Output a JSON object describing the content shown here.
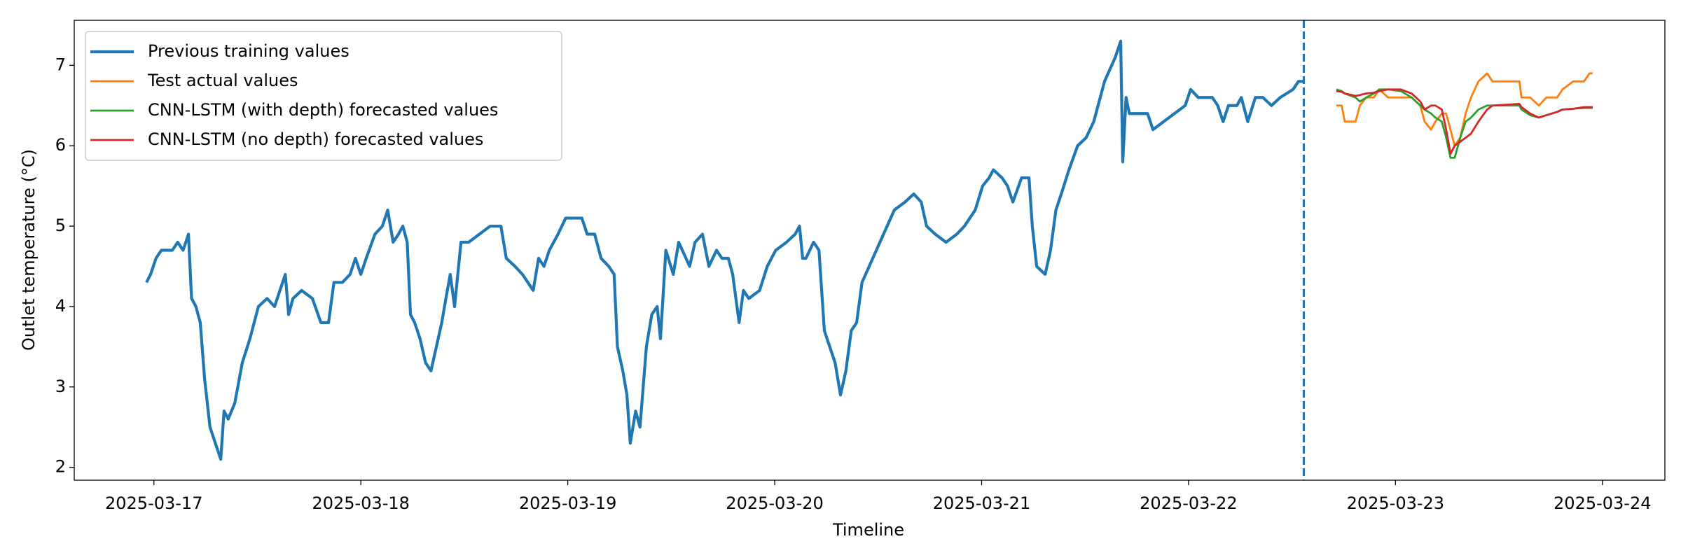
{
  "chart_data": {
    "type": "line",
    "xlabel": "Timeline",
    "ylabel": "Outlet temperature (°C)",
    "xlim": [
      20163.615,
      20171.302
    ],
    "ylim": [
      1.84,
      7.56
    ],
    "xticks": [
      {
        "value": 20164,
        "label": "2025-03-17"
      },
      {
        "value": 20165,
        "label": "2025-03-18"
      },
      {
        "value": 20166,
        "label": "2025-03-19"
      },
      {
        "value": 20167,
        "label": "2025-03-20"
      },
      {
        "value": 20168,
        "label": "2025-03-21"
      },
      {
        "value": 20169,
        "label": "2025-03-22"
      },
      {
        "value": 20170,
        "label": "2025-03-23"
      },
      {
        "value": 20171,
        "label": "2025-03-24"
      }
    ],
    "yticks": [
      2,
      3,
      4,
      5,
      6,
      7
    ],
    "grid": false,
    "legend": "upper left",
    "vline": {
      "x": 20169.557,
      "color": "#1f77b4",
      "style": "dashed"
    },
    "series": [
      {
        "name": "Previous training values",
        "color": "#1f77b4",
        "x": [
          20163.964,
          20163.984,
          20164.01,
          20164.036,
          20164.089,
          20164.115,
          20164.141,
          20164.167,
          20164.182,
          20164.203,
          20164.224,
          20164.245,
          20164.271,
          20164.297,
          20164.323,
          20164.339,
          20164.359,
          20164.391,
          20164.427,
          20164.464,
          20164.505,
          20164.547,
          20164.583,
          20164.609,
          20164.635,
          20164.651,
          20164.672,
          20164.714,
          20164.766,
          20164.807,
          20164.844,
          20164.87,
          20164.911,
          20164.948,
          20164.974,
          20165.0,
          20165.026,
          20165.068,
          20165.104,
          20165.13,
          20165.156,
          20165.182,
          20165.203,
          20165.224,
          20165.24,
          20165.26,
          20165.286,
          20165.313,
          20165.339,
          20165.365,
          20165.391,
          20165.411,
          20165.432,
          20165.453,
          20165.484,
          20165.521,
          20165.573,
          20165.625,
          20165.677,
          20165.703,
          20165.745,
          20165.781,
          20165.807,
          20165.833,
          20165.859,
          20165.885,
          20165.911,
          20165.953,
          20165.99,
          20166.068,
          20166.094,
          20166.13,
          20166.161,
          20166.198,
          20166.224,
          20166.24,
          20166.266,
          20166.286,
          20166.302,
          20166.328,
          20166.349,
          20166.38,
          20166.406,
          20166.432,
          20166.448,
          20166.474,
          20166.51,
          20166.536,
          20166.589,
          20166.615,
          20166.651,
          20166.682,
          20166.719,
          20166.745,
          20166.776,
          20166.797,
          20166.828,
          20166.849,
          20166.875,
          20166.927,
          20166.964,
          20167.005,
          20167.057,
          20167.099,
          20167.12,
          20167.135,
          20167.151,
          20167.188,
          20167.214,
          20167.24,
          20167.266,
          20167.292,
          20167.318,
          20167.344,
          20167.37,
          20167.396,
          20167.422,
          20167.474,
          20167.526,
          20167.578,
          20167.63,
          20167.672,
          20167.708,
          20167.734,
          20167.776,
          20167.828,
          20167.88,
          20167.917,
          20167.969,
          20168.005,
          20168.036,
          20168.057,
          20168.099,
          20168.125,
          20168.151,
          20168.193,
          20168.229,
          20168.245,
          20168.266,
          20168.307,
          20168.333,
          20168.359,
          20168.385,
          20168.422,
          20168.464,
          20168.505,
          20168.542,
          20168.594,
          20168.646,
          20168.672,
          20168.682,
          20168.698,
          20168.714,
          20168.75,
          20168.802,
          20168.828,
          20168.88,
          20168.932,
          20168.984,
          20169.01,
          20169.047,
          20169.115,
          20169.141,
          20169.167,
          20169.193,
          20169.234,
          20169.255,
          20169.286,
          20169.323,
          20169.359,
          20169.401,
          20169.443,
          20169.505,
          20169.531,
          20169.557
        ],
        "values": [
          4.3,
          4.4,
          4.6,
          4.7,
          4.7,
          4.8,
          4.7,
          4.9,
          4.1,
          4.0,
          3.8,
          3.1,
          2.5,
          2.3,
          2.1,
          2.7,
          2.6,
          2.8,
          3.3,
          3.6,
          4.0,
          4.1,
          4.0,
          4.2,
          4.4,
          3.9,
          4.1,
          4.2,
          4.1,
          3.8,
          3.8,
          4.3,
          4.3,
          4.4,
          4.6,
          4.4,
          4.6,
          4.9,
          5.0,
          5.2,
          4.8,
          4.9,
          5.0,
          4.8,
          3.9,
          3.8,
          3.6,
          3.3,
          3.2,
          3.5,
          3.8,
          4.1,
          4.4,
          4.0,
          4.8,
          4.8,
          4.9,
          5.0,
          5.0,
          4.6,
          4.5,
          4.4,
          4.3,
          4.2,
          4.6,
          4.5,
          4.7,
          4.9,
          5.1,
          5.1,
          4.9,
          4.9,
          4.6,
          4.5,
          4.4,
          3.5,
          3.2,
          2.9,
          2.3,
          2.7,
          2.5,
          3.5,
          3.9,
          4.0,
          3.6,
          4.7,
          4.4,
          4.8,
          4.5,
          4.8,
          4.9,
          4.5,
          4.7,
          4.6,
          4.6,
          4.4,
          3.8,
          4.2,
          4.1,
          4.2,
          4.5,
          4.7,
          4.8,
          4.9,
          5.0,
          4.6,
          4.6,
          4.8,
          4.7,
          3.7,
          3.5,
          3.3,
          2.9,
          3.2,
          3.7,
          3.8,
          4.3,
          4.6,
          4.9,
          5.2,
          5.3,
          5.4,
          5.3,
          5.0,
          4.9,
          4.8,
          4.9,
          5.0,
          5.2,
          5.5,
          5.6,
          5.7,
          5.6,
          5.5,
          5.3,
          5.6,
          5.6,
          5.0,
          4.5,
          4.4,
          4.7,
          5.2,
          5.4,
          5.7,
          6.0,
          6.1,
          6.3,
          6.8,
          7.1,
          7.3,
          5.8,
          6.6,
          6.4,
          6.4,
          6.4,
          6.2,
          6.3,
          6.4,
          6.5,
          6.7,
          6.6,
          6.6,
          6.5,
          6.3,
          6.5,
          6.5,
          6.6,
          6.3,
          6.6,
          6.6,
          6.5,
          6.6,
          6.7,
          6.8,
          6.8
        ]
      },
      {
        "name": "Test actual values",
        "color": "#ff7f0e",
        "x": [
          20169.714,
          20169.74,
          20169.755,
          20169.807,
          20169.828,
          20169.859,
          20169.896,
          20169.922,
          20169.964,
          20170.026,
          20170.078,
          20170.12,
          20170.141,
          20170.172,
          20170.193,
          20170.224,
          20170.245,
          20170.266,
          20170.286,
          20170.313,
          20170.339,
          20170.365,
          20170.401,
          20170.443,
          20170.469,
          20170.599,
          20170.609,
          20170.651,
          20170.693,
          20170.729,
          20170.781,
          20170.807,
          20170.859,
          20170.911,
          20170.938,
          20170.953
        ],
        "values": [
          6.5,
          6.5,
          6.3,
          6.3,
          6.5,
          6.6,
          6.6,
          6.7,
          6.6,
          6.6,
          6.6,
          6.5,
          6.3,
          6.2,
          6.3,
          6.4,
          6.4,
          6.2,
          6.0,
          6.1,
          6.4,
          6.6,
          6.8,
          6.9,
          6.8,
          6.8,
          6.6,
          6.6,
          6.5,
          6.6,
          6.6,
          6.7,
          6.8,
          6.8,
          6.9,
          6.9
        ]
      },
      {
        "name": "CNN-LSTM (with depth) forecasted values",
        "color": "#2ca02c",
        "x": [
          20169.714,
          20169.74,
          20169.755,
          20169.807,
          20169.828,
          20169.859,
          20169.896,
          20169.922,
          20169.964,
          20170.026,
          20170.078,
          20170.12,
          20170.141,
          20170.172,
          20170.193,
          20170.224,
          20170.245,
          20170.266,
          20170.286,
          20170.313,
          20170.339,
          20170.365,
          20170.401,
          20170.443,
          20170.469,
          20170.599,
          20170.609,
          20170.651,
          20170.693,
          20170.729,
          20170.781,
          20170.807,
          20170.859,
          20170.911,
          20170.938,
          20170.953
        ],
        "values": [
          6.7,
          6.68,
          6.65,
          6.6,
          6.55,
          6.6,
          6.65,
          6.7,
          6.7,
          6.68,
          6.6,
          6.5,
          6.45,
          6.4,
          6.35,
          6.3,
          6.1,
          5.85,
          5.85,
          6.1,
          6.3,
          6.35,
          6.45,
          6.5,
          6.5,
          6.5,
          6.45,
          6.38,
          6.35,
          6.38,
          6.42,
          6.45,
          6.46,
          6.47,
          6.47,
          6.47
        ]
      },
      {
        "name": "CNN-LSTM (no depth) forecasted values",
        "color": "#d62728",
        "x": [
          20169.714,
          20169.74,
          20169.755,
          20169.807,
          20169.828,
          20169.859,
          20169.896,
          20169.922,
          20169.964,
          20170.026,
          20170.078,
          20170.12,
          20170.141,
          20170.172,
          20170.193,
          20170.224,
          20170.245,
          20170.266,
          20170.286,
          20170.313,
          20170.339,
          20170.365,
          20170.401,
          20170.443,
          20170.469,
          20170.599,
          20170.609,
          20170.651,
          20170.693,
          20170.729,
          20170.781,
          20170.807,
          20170.859,
          20170.911,
          20170.938,
          20170.953
        ],
        "values": [
          6.68,
          6.67,
          6.65,
          6.62,
          6.63,
          6.65,
          6.66,
          6.68,
          6.7,
          6.7,
          6.65,
          6.55,
          6.45,
          6.5,
          6.5,
          6.45,
          6.2,
          5.9,
          6.0,
          6.05,
          6.1,
          6.15,
          6.3,
          6.45,
          6.5,
          6.52,
          6.48,
          6.4,
          6.35,
          6.38,
          6.42,
          6.45,
          6.46,
          6.48,
          6.48,
          6.48
        ]
      }
    ]
  }
}
